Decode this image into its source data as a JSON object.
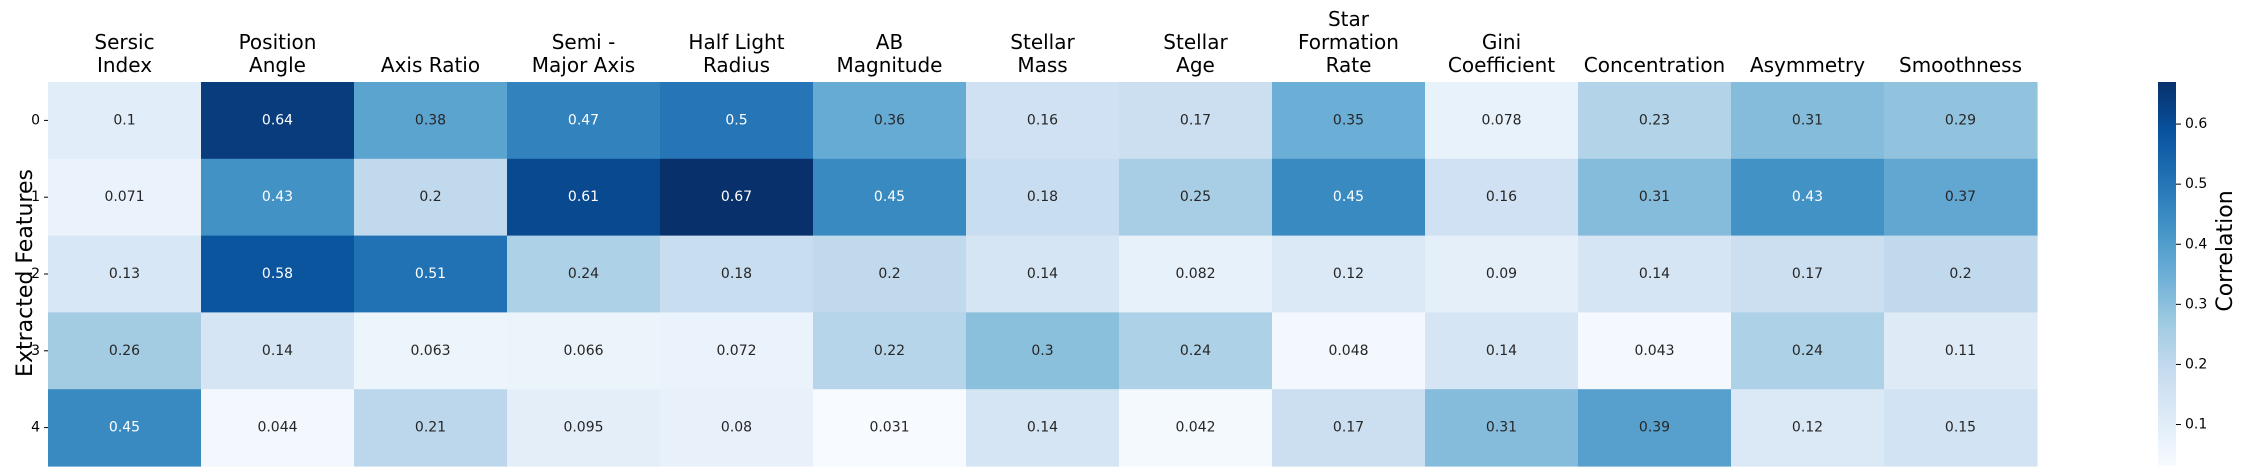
{
  "chart_data": {
    "type": "heatmap",
    "columns": [
      [
        "Sersic",
        "Index"
      ],
      [
        "Position",
        "Angle"
      ],
      [
        "Axis Ratio"
      ],
      [
        "Semi -",
        "Major Axis"
      ],
      [
        "Half Light",
        "Radius"
      ],
      [
        "AB",
        "Magnitude"
      ],
      [
        "Stellar",
        "Mass"
      ],
      [
        "Stellar",
        "Age"
      ],
      [
        "Star",
        "Formation",
        "Rate"
      ],
      [
        "Gini",
        "Coefficient"
      ],
      [
        "Concentration"
      ],
      [
        "Asymmetry"
      ],
      [
        "Smoothness"
      ]
    ],
    "rows": [
      "0",
      "1",
      "2",
      "3",
      "4"
    ],
    "values": [
      [
        0.1,
        0.64,
        0.38,
        0.47,
        0.5,
        0.36,
        0.16,
        0.17,
        0.35,
        0.078,
        0.23,
        0.31,
        0.29
      ],
      [
        0.071,
        0.43,
        0.2,
        0.61,
        0.67,
        0.45,
        0.18,
        0.25,
        0.45,
        0.16,
        0.31,
        0.43,
        0.37
      ],
      [
        0.13,
        0.58,
        0.51,
        0.24,
        0.18,
        0.2,
        0.14,
        0.082,
        0.12,
        0.09,
        0.14,
        0.17,
        0.2
      ],
      [
        0.26,
        0.14,
        0.063,
        0.066,
        0.072,
        0.22,
        0.3,
        0.24,
        0.048,
        0.14,
        0.043,
        0.24,
        0.11
      ],
      [
        0.45,
        0.044,
        0.21,
        0.095,
        0.08,
        0.031,
        0.14,
        0.042,
        0.17,
        0.31,
        0.39,
        0.12,
        0.15
      ]
    ],
    "ylabel": "Extracted Features",
    "colorbar_label": "Correlation",
    "colorbar_ticks": [
      "0.1",
      "0.2",
      "0.3",
      "0.4",
      "0.5",
      "0.6"
    ],
    "colorbar_range": [
      0.031,
      0.67
    ],
    "colormap": "Blues",
    "colormap_stops": [
      "#f7fbff",
      "#deebf7",
      "#c6dbef",
      "#9ecae1",
      "#6baed6",
      "#4292c6",
      "#2171b5",
      "#08519c",
      "#08306b"
    ]
  }
}
